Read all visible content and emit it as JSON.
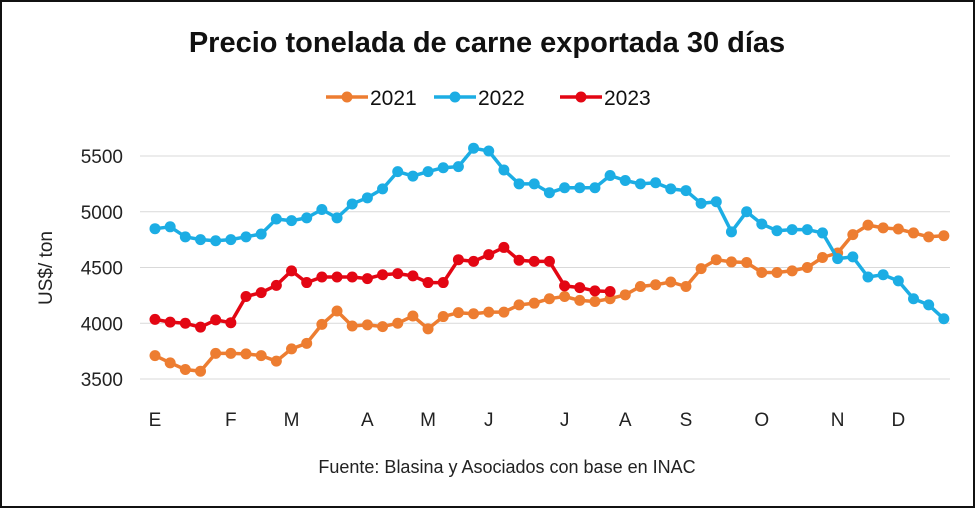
{
  "chart_data": {
    "type": "line",
    "title": "Precio tonelada de carne exportada 30 días",
    "xlabel": "",
    "ylabel": "US$/ ton",
    "source": "Fuente: Blasina y Asociados con base en INAC",
    "ylim": [
      3500,
      5500
    ],
    "yticks": [
      5500,
      5000,
      4500,
      4000,
      3500
    ],
    "grid": true,
    "legend_position": "top-center",
    "x_points": 53,
    "month_ticks": [
      {
        "label": "E",
        "index": 0
      },
      {
        "label": "F",
        "index": 5
      },
      {
        "label": "M",
        "index": 9
      },
      {
        "label": "A",
        "index": 14
      },
      {
        "label": "M",
        "index": 18
      },
      {
        "label": "J",
        "index": 22
      },
      {
        "label": "J",
        "index": 27
      },
      {
        "label": "A",
        "index": 31
      },
      {
        "label": "S",
        "index": 35
      },
      {
        "label": "O",
        "index": 40
      },
      {
        "label": "N",
        "index": 45
      },
      {
        "label": "D",
        "index": 49
      }
    ],
    "series": [
      {
        "name": "2021",
        "color": "#ED7D31",
        "values": [
          3710,
          3645,
          3585,
          3570,
          3730,
          3730,
          3725,
          3710,
          3660,
          3770,
          3820,
          3990,
          4110,
          3975,
          3985,
          3970,
          4000,
          4065,
          3950,
          4060,
          4095,
          4085,
          4100,
          4100,
          4165,
          4180,
          4220,
          4240,
          4205,
          4195,
          4220,
          4255,
          4330,
          4345,
          4370,
          4330,
          4490,
          4570,
          4550,
          4545,
          4455,
          4455,
          4470,
          4500,
          4590,
          4630,
          4795,
          4880,
          4855,
          4845,
          4810,
          4775,
          4785
        ]
      },
      {
        "name": "2022",
        "color": "#1CADE4",
        "values": [
          4848,
          4865,
          4775,
          4750,
          4740,
          4750,
          4775,
          4800,
          4935,
          4920,
          4945,
          5020,
          4945,
          5070,
          5125,
          5205,
          5360,
          5320,
          5360,
          5395,
          5405,
          5570,
          5545,
          5375,
          5250,
          5250,
          5170,
          5215,
          5215,
          5215,
          5325,
          5280,
          5250,
          5260,
          5205,
          5190,
          5075,
          5090,
          4820,
          5000,
          4890,
          4830,
          4840,
          4840,
          4810,
          4580,
          4595,
          4415,
          4435,
          4380,
          4220,
          4165,
          4040
        ]
      },
      {
        "name": "2023",
        "color": "#E30613",
        "values": [
          4035,
          4010,
          4000,
          3965,
          4030,
          4005,
          4240,
          4275,
          4340,
          4470,
          4365,
          4415,
          4415,
          4415,
          4400,
          4435,
          4445,
          4425,
          4365,
          4365,
          4570,
          4555,
          4615,
          4680,
          4565,
          4555,
          4555,
          4335,
          4320,
          4290,
          4285
        ]
      }
    ]
  }
}
